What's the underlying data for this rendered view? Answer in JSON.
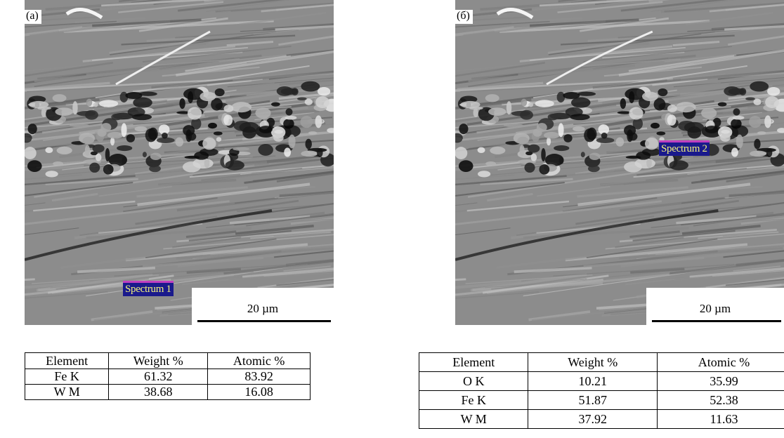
{
  "panels": [
    {
      "label": "(a)",
      "spectrum_label": "Spectrum 1",
      "scale_bar": "20 µm",
      "table": {
        "header": [
          "Element",
          "Weight %",
          "Atomic %"
        ],
        "rows": [
          [
            "Fe K",
            "61.32",
            "83.92"
          ],
          [
            "W M",
            "38.68",
            "16.08"
          ]
        ]
      }
    },
    {
      "label": "(б)",
      "spectrum_label": "Spectrum 2",
      "scale_bar": "20 µm",
      "table": {
        "header": [
          "Element",
          "Weight %",
          "Atomic %"
        ],
        "rows": [
          [
            "O K",
            "10.21",
            "35.99"
          ],
          [
            "Fe K",
            "51.87",
            "52.38"
          ],
          [
            "W M",
            "37.92",
            "11.63"
          ]
        ]
      }
    }
  ]
}
